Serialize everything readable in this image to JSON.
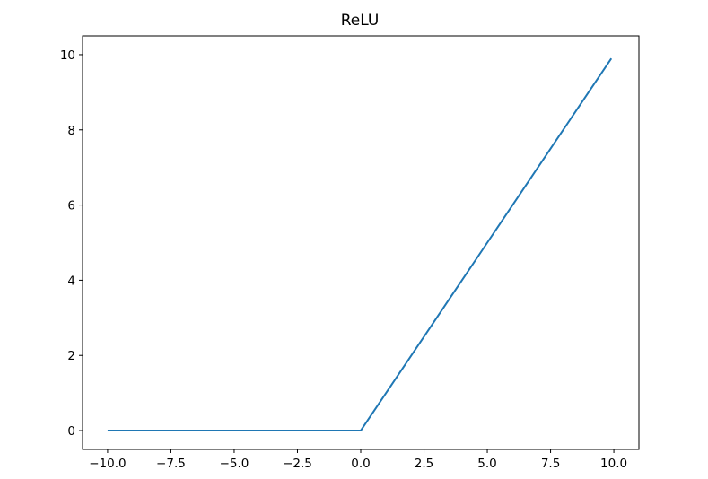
{
  "chart_data": {
    "type": "line",
    "title": "ReLU",
    "xlabel": "",
    "ylabel": "",
    "xlim": [
      -10.99,
      10.99
    ],
    "ylim": [
      -0.5,
      10.5
    ],
    "grid": false,
    "x_ticks": [
      -10.0,
      -7.5,
      -5.0,
      -2.5,
      0.0,
      2.5,
      5.0,
      7.5,
      10.0
    ],
    "x_tick_labels": [
      "−10.0",
      "−7.5",
      "−5.0",
      "−2.5",
      "0.0",
      "2.5",
      "5.0",
      "7.5",
      "10.0"
    ],
    "y_ticks": [
      0,
      2,
      4,
      6,
      8,
      10
    ],
    "y_tick_labels": [
      "0",
      "2",
      "4",
      "6",
      "8",
      "10"
    ],
    "series": [
      {
        "color": "#1f77b4",
        "x": [
          -10.0,
          -7.5,
          -5.0,
          -2.5,
          0.0,
          2.5,
          5.0,
          7.5,
          9.9
        ],
        "y": [
          0,
          0,
          0,
          0,
          0,
          2.5,
          5.0,
          7.5,
          9.9
        ]
      }
    ]
  }
}
